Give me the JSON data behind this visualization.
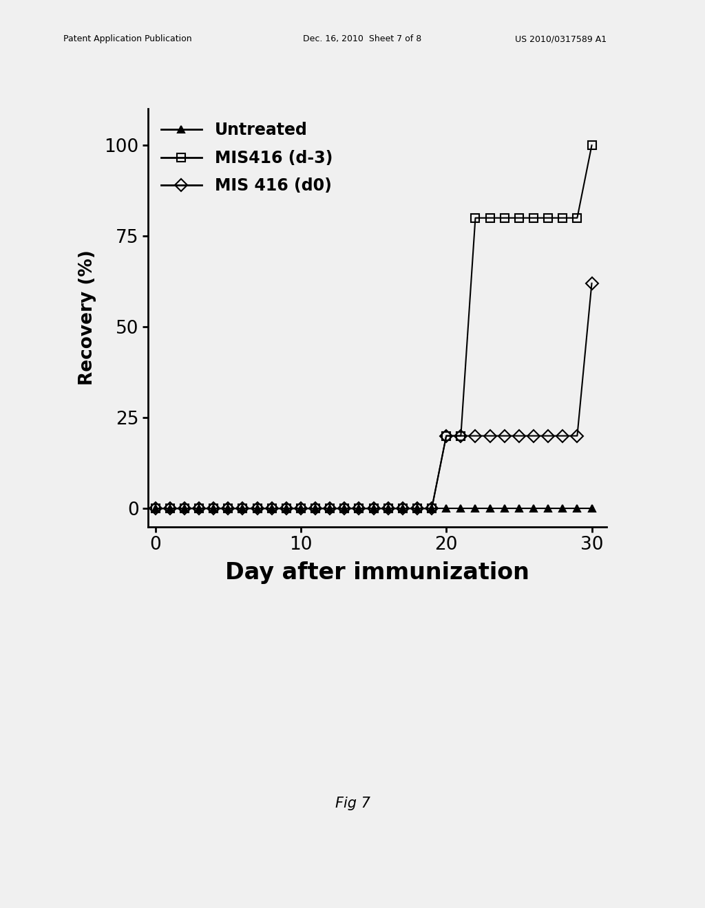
{
  "title": "",
  "xlabel": "Day after immunization",
  "ylabel": "Recovery (%)",
  "xlim": [
    -0.5,
    31
  ],
  "ylim": [
    -5,
    110
  ],
  "xticks": [
    0,
    10,
    20,
    30
  ],
  "yticks": [
    0,
    25,
    50,
    75,
    100
  ],
  "background_color": "#f0f0f0",
  "header_left": "Patent Application Publication",
  "header_mid": "Dec. 16, 2010  Sheet 7 of 8",
  "header_right": "US 2010/0317589 A1",
  "footer_text": "Fig 7",
  "series": {
    "untreated": {
      "label": "Untreated",
      "x": [
        0,
        1,
        2,
        3,
        4,
        5,
        6,
        7,
        8,
        9,
        10,
        11,
        12,
        13,
        14,
        15,
        16,
        17,
        18,
        19,
        20,
        21,
        22,
        23,
        24,
        25,
        26,
        27,
        28,
        29,
        30
      ],
      "y": [
        0,
        0,
        0,
        0,
        0,
        0,
        0,
        0,
        0,
        0,
        0,
        0,
        0,
        0,
        0,
        0,
        0,
        0,
        0,
        0,
        0,
        0,
        0,
        0,
        0,
        0,
        0,
        0,
        0,
        0,
        0
      ],
      "color": "#000000",
      "marker": "^",
      "markersize": 7,
      "linewidth": 1.5,
      "fillstyle": "full"
    },
    "mis416_dm3": {
      "label": "MIS416 (d-3)",
      "x": [
        0,
        1,
        2,
        3,
        4,
        5,
        6,
        7,
        8,
        9,
        10,
        11,
        12,
        13,
        14,
        15,
        16,
        17,
        18,
        19,
        20,
        21,
        22,
        23,
        24,
        25,
        26,
        27,
        28,
        29,
        30
      ],
      "y": [
        0,
        0,
        0,
        0,
        0,
        0,
        0,
        0,
        0,
        0,
        0,
        0,
        0,
        0,
        0,
        0,
        0,
        0,
        0,
        0,
        20,
        20,
        80,
        80,
        80,
        80,
        80,
        80,
        80,
        80,
        100
      ],
      "color": "#000000",
      "marker": "s",
      "markersize": 9,
      "linewidth": 1.5,
      "fillstyle": "none"
    },
    "mis416_d0": {
      "label": "MIS 416 (d0)",
      "x": [
        0,
        1,
        2,
        3,
        4,
        5,
        6,
        7,
        8,
        9,
        10,
        11,
        12,
        13,
        14,
        15,
        16,
        17,
        18,
        19,
        20,
        21,
        22,
        23,
        24,
        25,
        26,
        27,
        28,
        29,
        30
      ],
      "y": [
        0,
        0,
        0,
        0,
        0,
        0,
        0,
        0,
        0,
        0,
        0,
        0,
        0,
        0,
        0,
        0,
        0,
        0,
        0,
        0,
        20,
        20,
        20,
        20,
        20,
        20,
        20,
        20,
        20,
        20,
        62
      ],
      "color": "#000000",
      "marker": "D",
      "markersize": 9,
      "linewidth": 1.5,
      "fillstyle": "none"
    }
  },
  "legend_fontsize": 17,
  "tick_labelsize": 19,
  "xlabel_fontsize": 24,
  "ylabel_fontsize": 19,
  "header_fontsize": 9,
  "footer_fontsize": 15
}
